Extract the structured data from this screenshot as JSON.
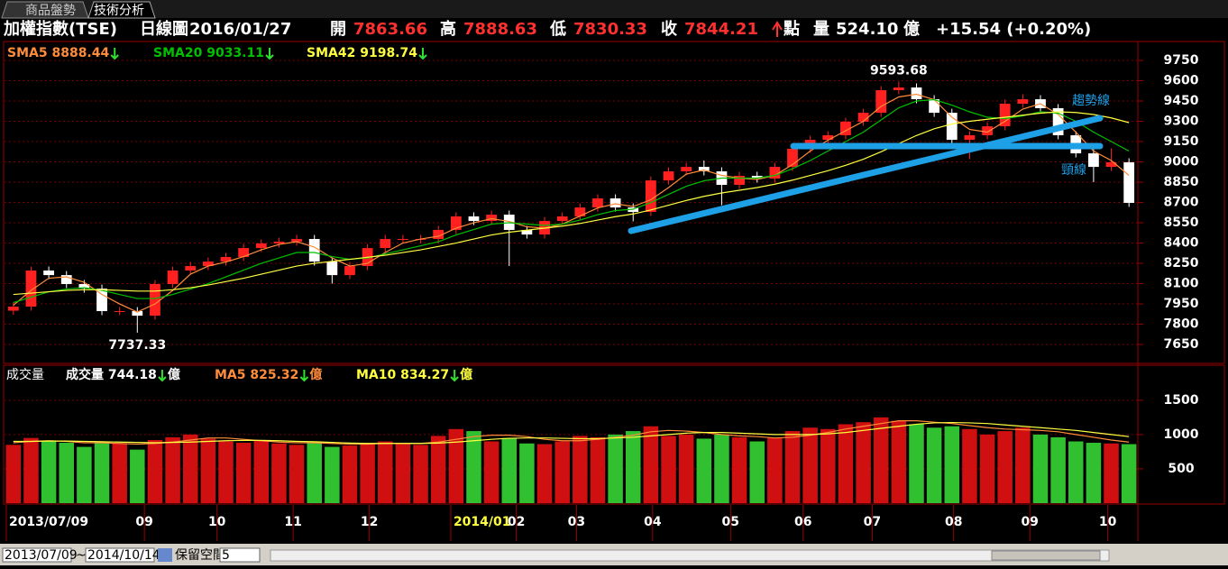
{
  "header": {
    "tabs": [
      "商品盤勢",
      "技術分析"
    ],
    "symbol": "加權指數(TSE)",
    "period": "日線圖",
    "date": "2016/01/27",
    "open_label": "開",
    "open": "7863.66",
    "high_label": "高",
    "high": "7888.63",
    "low_label": "低",
    "low": "7830.33",
    "close_label": "收",
    "close": "7844.21",
    "close_unit": "點",
    "volume_label": "量",
    "volume": "524.10",
    "volume_unit": "億",
    "change": "+15.54 (+0.20%)"
  },
  "toolbar": {
    "start": "2013/07/09",
    "sep": "~",
    "end": "2014/10/14",
    "reserve_label": "保留空間",
    "reserve": "5"
  },
  "chart_data": [
    {
      "type": "candlestick",
      "up_color": "#ff2020",
      "down_color": "#ffffff",
      "grid": true,
      "ylim": [
        7517,
        9890
      ],
      "yticks": [
        7650,
        7800,
        7950,
        8100,
        8250,
        8400,
        8550,
        8700,
        8850,
        9000,
        9150,
        9300,
        9450,
        9600,
        9750
      ],
      "xlim": [
        -0.5,
        63.5
      ],
      "open": [
        7900,
        7930,
        8197,
        8163,
        8097,
        8063,
        7897,
        7897,
        7863,
        8097,
        8197,
        8230,
        8263,
        8297,
        8363,
        8397,
        8410,
        8430,
        8263,
        8163,
        8230,
        8363,
        8430,
        8430,
        8430,
        8497,
        8597,
        8563,
        8610,
        8497,
        8463,
        8563,
        8597,
        8663,
        8730,
        8663,
        8630,
        8863,
        8930,
        8963,
        8930,
        8830,
        8897,
        8877,
        8963,
        9097,
        9163,
        9197,
        9297,
        9363,
        9530,
        9550,
        9463,
        9363,
        9163,
        9197,
        9263,
        9430,
        9463,
        9397,
        9197,
        9063,
        8963,
        8997
      ],
      "high": [
        7960,
        8227,
        8227,
        8193,
        8127,
        8093,
        7927,
        7927,
        8127,
        8227,
        8260,
        8293,
        8327,
        8393,
        8427,
        8440,
        8460,
        8460,
        8293,
        8260,
        8393,
        8460,
        8460,
        8460,
        8527,
        8627,
        8627,
        8640,
        8640,
        8527,
        8593,
        8627,
        8693,
        8760,
        8760,
        8693,
        8893,
        8960,
        8993,
        9010,
        8960,
        8927,
        8927,
        8993,
        9127,
        9193,
        9227,
        9327,
        9393,
        9560,
        9593.68,
        9580,
        9493,
        9393,
        9227,
        9293,
        9460,
        9500,
        9493,
        9427,
        9227,
        9093,
        9100,
        9027
      ],
      "low": [
        7870,
        7900,
        8133,
        8067,
        8033,
        7867,
        7867,
        7737.33,
        7833,
        8067,
        8167,
        8200,
        8233,
        8267,
        8333,
        8367,
        8380,
        8233,
        8100,
        8133,
        8200,
        8333,
        8400,
        8400,
        8400,
        8467,
        8533,
        8533,
        8230,
        8433,
        8433,
        8533,
        8567,
        8633,
        8633,
        8560,
        8600,
        8833,
        8900,
        8900,
        8680,
        8800,
        8847,
        8847,
        8933,
        9067,
        9133,
        9167,
        9267,
        9333,
        9500,
        9433,
        9333,
        9133,
        9020,
        9167,
        9233,
        9400,
        9367,
        9167,
        9033,
        8850,
        8933,
        8667
      ],
      "close": [
        7930,
        8197,
        8163,
        8097,
        8063,
        7897,
        7897,
        7863,
        8097,
        8197,
        8230,
        8263,
        8297,
        8363,
        8397,
        8410,
        8430,
        8263,
        8163,
        8230,
        8363,
        8430,
        8430,
        8430,
        8497,
        8597,
        8563,
        8610,
        8497,
        8463,
        8563,
        8597,
        8663,
        8730,
        8663,
        8630,
        8863,
        8930,
        8963,
        8930,
        8830,
        8897,
        8877,
        8963,
        9097,
        9163,
        9197,
        9297,
        9363,
        9530,
        9550,
        9463,
        9363,
        9163,
        9197,
        9263,
        9430,
        9463,
        9397,
        9197,
        9063,
        8963,
        8997,
        8697
      ],
      "series": [
        {
          "name": "SMA5",
          "legend_value": 8888.44,
          "color": "#ff8c3a",
          "values": [
            7940,
            8050,
            8140,
            8150,
            8110,
            8020,
            7950,
            7890,
            7950,
            8050,
            8170,
            8230,
            8260,
            8300,
            8350,
            8390,
            8410,
            8370,
            8290,
            8230,
            8250,
            8330,
            8400,
            8430,
            8450,
            8510,
            8550,
            8580,
            8560,
            8520,
            8510,
            8540,
            8600,
            8660,
            8690,
            8670,
            8720,
            8810,
            8910,
            8940,
            8900,
            8880,
            8870,
            8900,
            8980,
            9080,
            9160,
            9230,
            9300,
            9410,
            9480,
            9500,
            9460,
            9330,
            9240,
            9220,
            9300,
            9390,
            9430,
            9350,
            9220,
            9080,
            9010,
            8900
          ]
        },
        {
          "name": "SMA20",
          "legend_value": 9033.11,
          "color": "#00c000",
          "values": [
            7960,
            8000,
            8040,
            8060,
            8070,
            8050,
            8020,
            7990,
            7990,
            8020,
            8060,
            8100,
            8150,
            8200,
            8250,
            8290,
            8330,
            8330,
            8300,
            8280,
            8290,
            8320,
            8350,
            8380,
            8410,
            8460,
            8500,
            8540,
            8550,
            8540,
            8530,
            8540,
            8570,
            8610,
            8640,
            8650,
            8700,
            8760,
            8820,
            8860,
            8880,
            8880,
            8880,
            8900,
            8950,
            9010,
            9080,
            9150,
            9220,
            9310,
            9400,
            9450,
            9460,
            9420,
            9370,
            9330,
            9320,
            9340,
            9370,
            9360,
            9300,
            9220,
            9150,
            9080
          ]
        },
        {
          "name": "SMA42",
          "legend_value": 9198.74,
          "color": "#ffff40",
          "values": [
            8020,
            8030,
            8040,
            8050,
            8055,
            8055,
            8050,
            8045,
            8045,
            8055,
            8070,
            8090,
            8115,
            8140,
            8170,
            8200,
            8230,
            8250,
            8265,
            8280,
            8295,
            8310,
            8330,
            8350,
            8375,
            8400,
            8430,
            8460,
            8480,
            8495,
            8510,
            8525,
            8545,
            8570,
            8595,
            8615,
            8645,
            8680,
            8715,
            8745,
            8770,
            8790,
            8810,
            8835,
            8865,
            8900,
            8935,
            8975,
            9020,
            9075,
            9135,
            9195,
            9245,
            9280,
            9300,
            9315,
            9330,
            9345,
            9360,
            9370,
            9365,
            9350,
            9325,
            9290
          ]
        }
      ],
      "annotations": [
        "趨勢線",
        "頸線"
      ]
    },
    {
      "type": "bar",
      "title": "成交量",
      "unit": "億",
      "grid": true,
      "ylim": [
        0,
        2010
      ],
      "yticks": [
        500,
        1000,
        1500
      ],
      "xlim": [
        -0.5,
        63.5
      ],
      "xticks": [
        {
          "value": -0.4,
          "label": "2013/07/09"
        },
        {
          "value": 7.4,
          "label": "09"
        },
        {
          "value": 11.5,
          "label": "10"
        },
        {
          "value": 15.8,
          "label": "11"
        },
        {
          "value": 20.1,
          "label": "12"
        },
        {
          "value": 24.7,
          "label": "2014/01"
        },
        {
          "value": 28.4,
          "label": "02"
        },
        {
          "value": 31.8,
          "label": "03"
        },
        {
          "value": 36.1,
          "label": "04"
        },
        {
          "value": 40.5,
          "label": "05"
        },
        {
          "value": 44.6,
          "label": "06"
        },
        {
          "value": 48.5,
          "label": "07"
        },
        {
          "value": 53.1,
          "label": "08"
        },
        {
          "value": 57.4,
          "label": "09"
        },
        {
          "value": 61.8,
          "label": "10"
        }
      ],
      "up_color": "#d01010",
      "down_color": "#30c030",
      "series": [
        {
          "name": "成交量",
          "legend_value": 744.18,
          "color": "#ffffff",
          "values": [
            850,
            950,
            900,
            880,
            820,
            900,
            870,
            780,
            920,
            960,
            1000,
            940,
            900,
            880,
            910,
            870,
            850,
            890,
            820,
            840,
            880,
            900,
            860,
            850,
            980,
            1080,
            1050,
            900,
            950,
            870,
            860,
            900,
            980,
            960,
            1000,
            1050,
            1120,
            980,
            1000,
            940,
            1000,
            960,
            900,
            950,
            1050,
            1100,
            1080,
            1150,
            1180,
            1250,
            1200,
            1150,
            1100,
            1120,
            1080,
            1000,
            1050,
            1100,
            1000,
            960,
            900,
            880,
            870,
            860
          ]
        },
        {
          "name": "MA5",
          "legend_value": 825.32,
          "color": "#ff8c3a",
          "values": [
            880,
            900,
            910,
            900,
            880,
            880,
            870,
            860,
            870,
            890,
            920,
            950,
            950,
            930,
            910,
            890,
            880,
            880,
            870,
            860,
            860,
            870,
            870,
            870,
            890,
            930,
            970,
            990,
            990,
            970,
            930,
            910,
            910,
            930,
            960,
            990,
            1040,
            1060,
            1050,
            1030,
            1000,
            980,
            970,
            950,
            960,
            990,
            1030,
            1080,
            1120,
            1160,
            1200,
            1200,
            1180,
            1160,
            1130,
            1100,
            1080,
            1070,
            1060,
            1040,
            1000,
            960,
            920,
            890
          ]
        },
        {
          "name": "MA10",
          "legend_value": 834.27,
          "color": "#ffff40",
          "values": [
            900,
            900,
            905,
            905,
            900,
            895,
            890,
            885,
            880,
            885,
            890,
            900,
            910,
            915,
            915,
            910,
            900,
            895,
            885,
            875,
            870,
            870,
            870,
            870,
            875,
            890,
            910,
            930,
            945,
            950,
            950,
            945,
            940,
            940,
            950,
            960,
            980,
            1000,
            1020,
            1030,
            1030,
            1020,
            1010,
            1000,
            1000,
            1000,
            1010,
            1030,
            1060,
            1090,
            1120,
            1150,
            1170,
            1175,
            1170,
            1160,
            1140,
            1120,
            1100,
            1080,
            1060,
            1030,
            1000,
            970
          ]
        }
      ]
    }
  ]
}
